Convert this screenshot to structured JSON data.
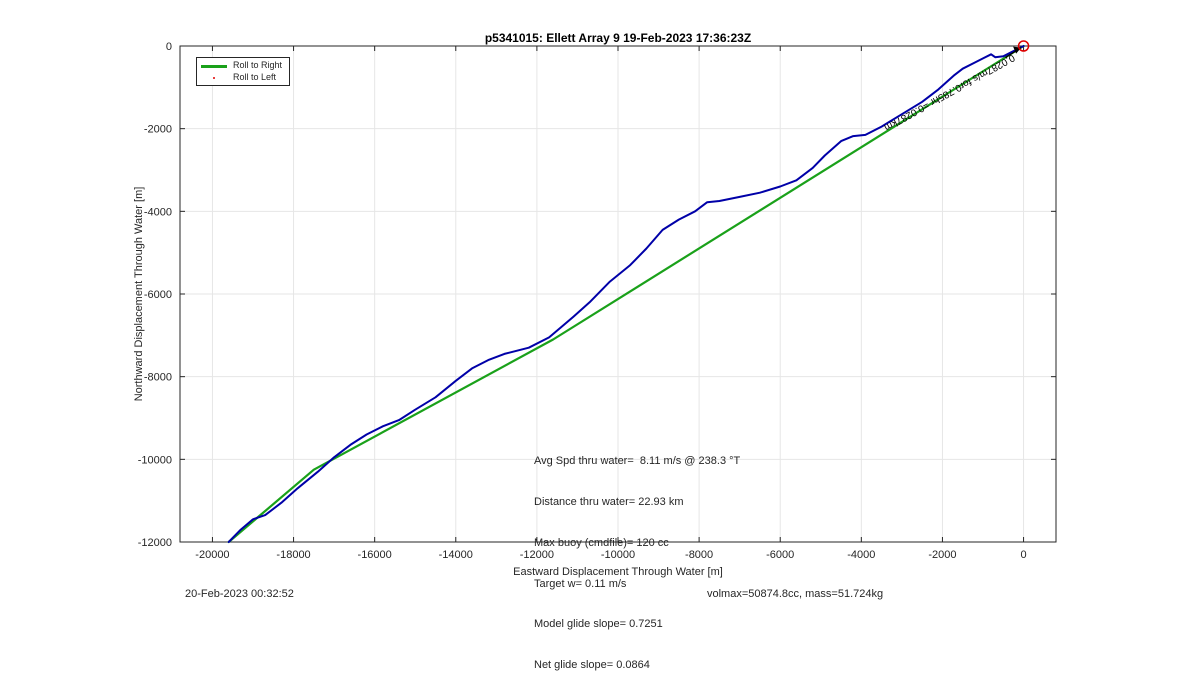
{
  "chart_data": {
    "type": "line",
    "title": "p5341015: Ellett Array 9 19-Feb-2023 17:36:23Z",
    "xlabel": "Eastward Displacement Through Water [m]",
    "ylabel": "Northward Displacement Through Water [m]",
    "xlim": [
      -20800,
      800
    ],
    "ylim": [
      -12000,
      0
    ],
    "xticks": [
      -20000,
      -18000,
      -16000,
      -14000,
      -12000,
      -10000,
      -8000,
      -6000,
      -4000,
      -2000,
      0
    ],
    "yticks": [
      0,
      -2000,
      -4000,
      -6000,
      -8000,
      -10000,
      -12000
    ],
    "xtick_labels": [
      "-20000",
      "-18000",
      "-16000",
      "-14000",
      "-12000",
      "-10000",
      "-8000",
      "-6000",
      "-4000",
      "-2000",
      "0"
    ],
    "ytick_labels": [
      "0",
      "-2000",
      "-4000",
      "-6000",
      "-8000",
      "-10000",
      "-12000"
    ],
    "grid": true,
    "legend_position": "top-left",
    "legend": [
      {
        "label": "Roll to Right",
        "color": "#1aa11a",
        "style": "line"
      },
      {
        "label": "Roll to Left",
        "color": "#e00000",
        "style": "dot"
      }
    ],
    "series": [
      {
        "name": "Roll to Right",
        "color": "#1aa11a",
        "x": [
          0,
          -11600,
          -17500,
          -19600
        ],
        "y": [
          0,
          -7100,
          -10250,
          -12000
        ]
      },
      {
        "color": "#0000a8",
        "x": [
          0,
          -300,
          -500,
          -700,
          -800,
          -1000,
          -1200,
          -1500,
          -1700,
          -2100,
          -2500,
          -3000,
          -3500,
          -3900,
          -4200,
          -4500,
          -4900,
          -5200,
          -5600,
          -6000,
          -6500,
          -7000,
          -7500,
          -7800,
          -8100,
          -8500,
          -8900,
          -9300,
          -9700,
          -10200,
          -10700,
          -11100,
          -11400,
          -11700,
          -12200,
          -12800,
          -13200,
          -13600,
          -14000,
          -14500,
          -15000,
          -15400,
          -15800,
          -16200,
          -16600,
          -17000,
          -17400,
          -17900,
          -18300,
          -18700,
          -19000,
          -19300,
          -19600
        ],
        "y": [
          0,
          -150,
          -250,
          -270,
          -200,
          -300,
          -400,
          -550,
          -700,
          -1050,
          -1350,
          -1650,
          -1950,
          -2150,
          -2180,
          -2300,
          -2650,
          -2950,
          -3250,
          -3400,
          -3550,
          -3650,
          -3750,
          -3780,
          -4000,
          -4200,
          -4450,
          -4900,
          -5300,
          -5700,
          -6200,
          -6550,
          -6800,
          -7050,
          -7300,
          -7450,
          -7600,
          -7800,
          -8100,
          -8500,
          -8800,
          -9050,
          -9200,
          -9400,
          -9650,
          -9950,
          -10300,
          -10700,
          -11050,
          -11350,
          -11450,
          -11700,
          -12000
        ]
      }
    ],
    "annotations": {
      "stats": [
        "Avg Spd thru water=  8.11 m/s @ 238.3 °T",
        "Distance thru water= 22.93 km",
        "Max buoy (cmdfile)= 120 cc",
        "Target w= 0.11 m/s",
        "Model glide slope= 0.7251",
        "Net glide slope= 0.0864"
      ],
      "rotated_label": "0.0287m/s for0.785hr =0.0287km",
      "end_marker": {
        "x": 0,
        "y": 0,
        "color": "#e00000"
      }
    }
  },
  "footer": {
    "left": "20-Feb-2023 00:32:52",
    "right": "volmax=50874.8cc, mass=51.724kg"
  }
}
